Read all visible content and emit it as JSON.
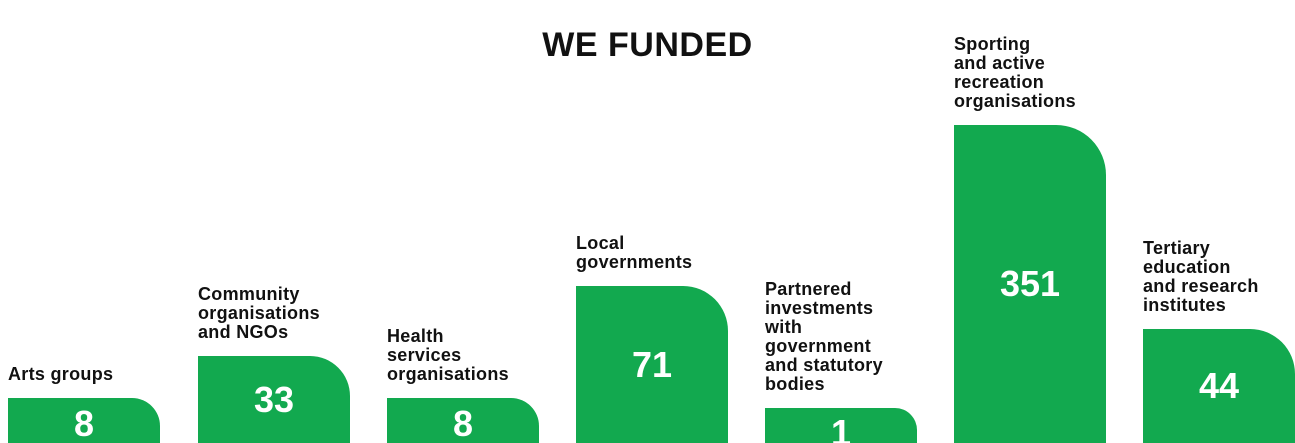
{
  "title": "WE FUNDED",
  "items": [
    {
      "label": "Arts groups",
      "value": 8
    },
    {
      "label": "Community organisations and NGOs",
      "value": 33
    },
    {
      "label": "Health services organisations",
      "value": 8
    },
    {
      "label": "Local governments",
      "value": 71
    },
    {
      "label": "Partnered investments with government and statutory bodies",
      "value": 1
    },
    {
      "label": "Sporting and active recreation organisations",
      "value": 351
    },
    {
      "label": "Tertiary education and research institutes",
      "value": 44
    }
  ]
}
